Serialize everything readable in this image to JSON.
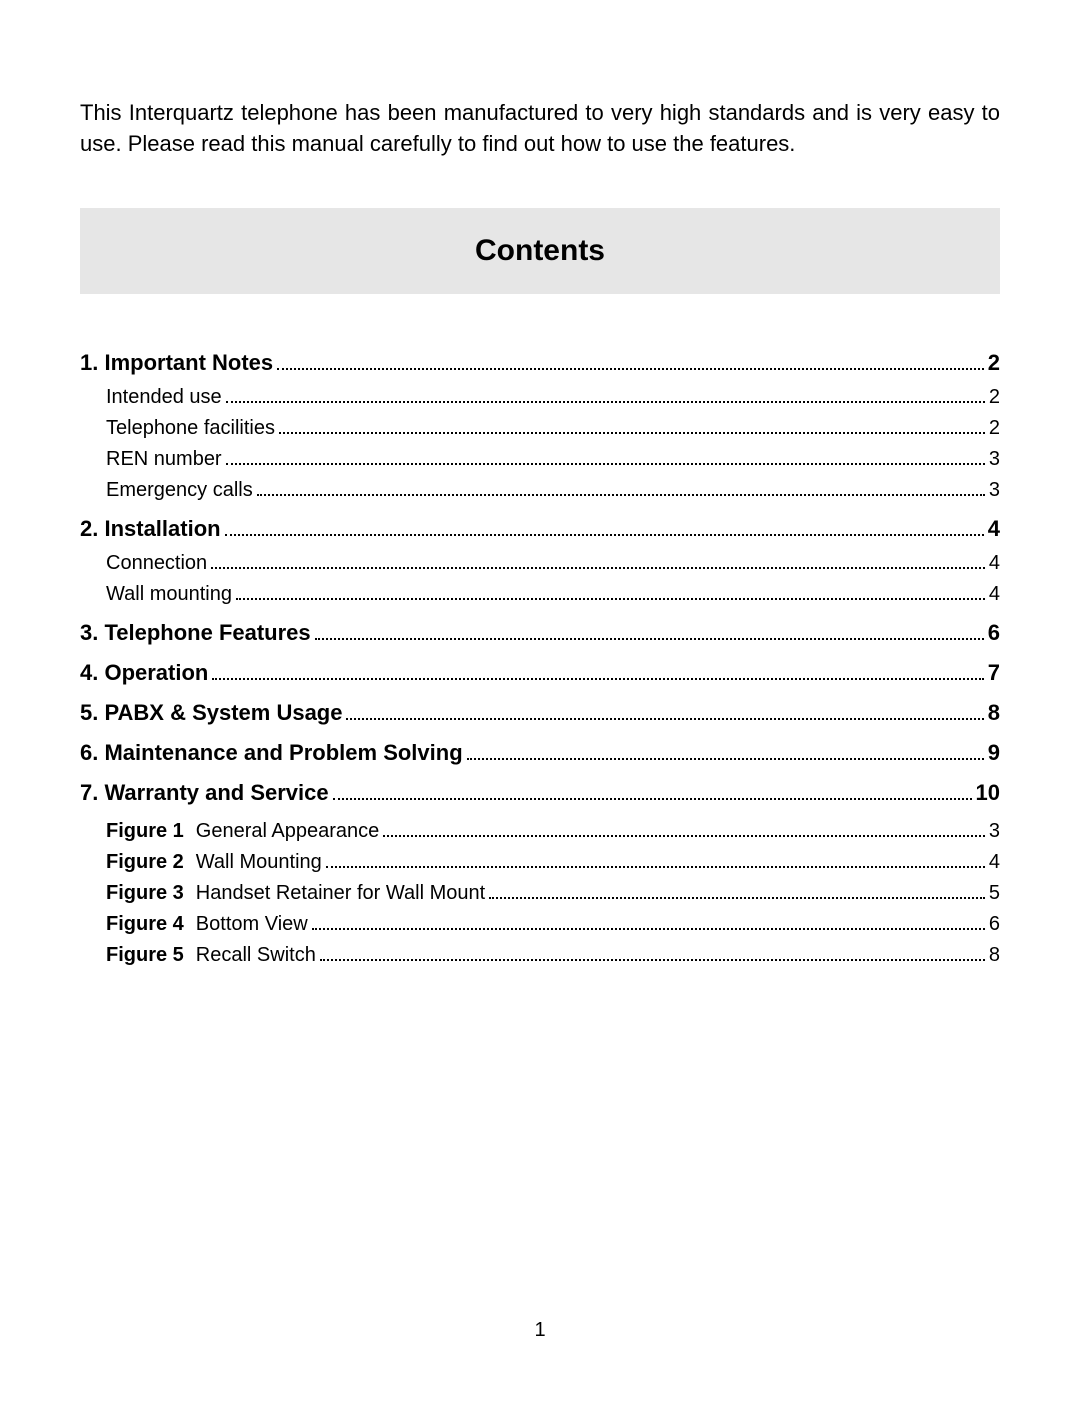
{
  "intro": "This Interquartz telephone has been manufactured to very high standards and is very easy to use. Please read this manual carefully to find out how to use the features.",
  "contents_heading": "Contents",
  "sections": [
    {
      "title": "1. Important Notes",
      "page": "2",
      "subs": [
        {
          "title": "Intended use",
          "page": "2"
        },
        {
          "title": "Telephone facilities",
          "page": "2"
        },
        {
          "title": "REN number",
          "page": "3"
        },
        {
          "title": "Emergency calls",
          "page": "3"
        }
      ]
    },
    {
      "title": "2. Installation",
      "page": "4",
      "subs": [
        {
          "title": "Connection",
          "page": "4"
        },
        {
          "title": "Wall mounting",
          "page": "4"
        }
      ]
    },
    {
      "title": "3. Telephone Features",
      "page": "6",
      "subs": []
    },
    {
      "title": "4. Operation",
      "page": "7",
      "subs": []
    },
    {
      "title": "5. PABX & System Usage",
      "page": "8",
      "subs": []
    },
    {
      "title": "6. Maintenance and Problem Solving",
      "page": "9",
      "subs": []
    },
    {
      "title": "7. Warranty and Service",
      "page": "10",
      "subs": []
    }
  ],
  "figures": [
    {
      "label": "Figure 1",
      "title": "General Appearance",
      "page": "3"
    },
    {
      "label": "Figure 2",
      "title": "Wall Mounting",
      "page": "4"
    },
    {
      "label": "Figure 3",
      "title": "Handset Retainer for Wall Mount",
      "page": "5"
    },
    {
      "label": "Figure 4",
      "title": "Bottom View",
      "page": "6"
    },
    {
      "label": "Figure 5",
      "title": "Recall Switch",
      "page": "8"
    }
  ],
  "page_number": "1",
  "colors": {
    "background": "#ffffff",
    "header_bg": "#e6e6e6",
    "text": "#000000"
  },
  "typography": {
    "intro_fontsize": 22,
    "heading_fontsize": 30,
    "main_fontsize": 22,
    "sub_fontsize": 20
  }
}
